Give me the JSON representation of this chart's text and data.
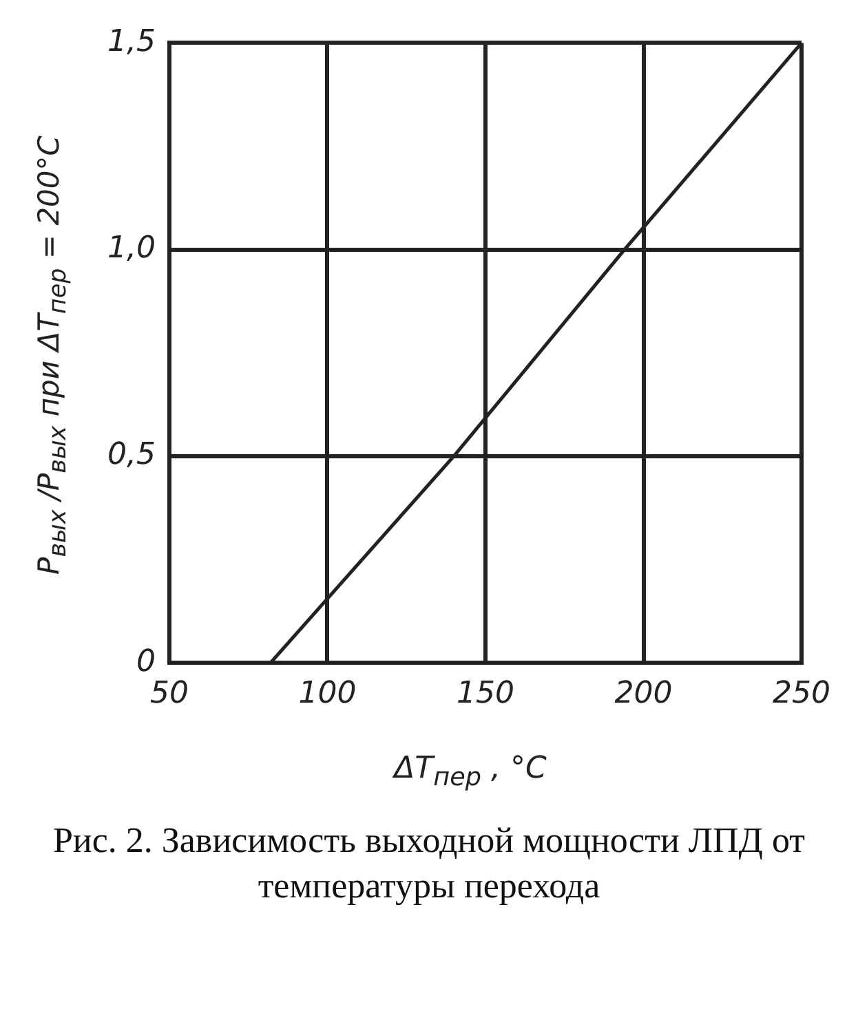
{
  "chart_data": {
    "type": "line",
    "xlabel": "ΔT$_{пер}$ , °C",
    "ylabel": "P$_{вых}$ /P$_{вых}$ при ΔT$_{пер}$ = 200°C",
    "annotations": [
      "Рис. 2. Зависимость выходной мощности ЛПД от температуры перехода"
    ],
    "series": [
      {
        "x": [
          82,
          140,
          194,
          250
        ],
        "values": [
          0,
          0.5,
          1.0,
          1.5
        ],
        "color": "#222222"
      }
    ],
    "xlim": [
      50,
      250
    ],
    "xticks": [
      50,
      100,
      150,
      200,
      250
    ],
    "ylim": [
      0,
      1.5
    ],
    "yticks": [
      0,
      {
        "value": 0.5,
        "label": "0,5"
      },
      {
        "value": 1.0,
        "label": "1,0"
      },
      {
        "value": 1.5,
        "label": "1,5"
      }
    ],
    "grid": true,
    "line_style": "solid",
    "legend": false
  }
}
